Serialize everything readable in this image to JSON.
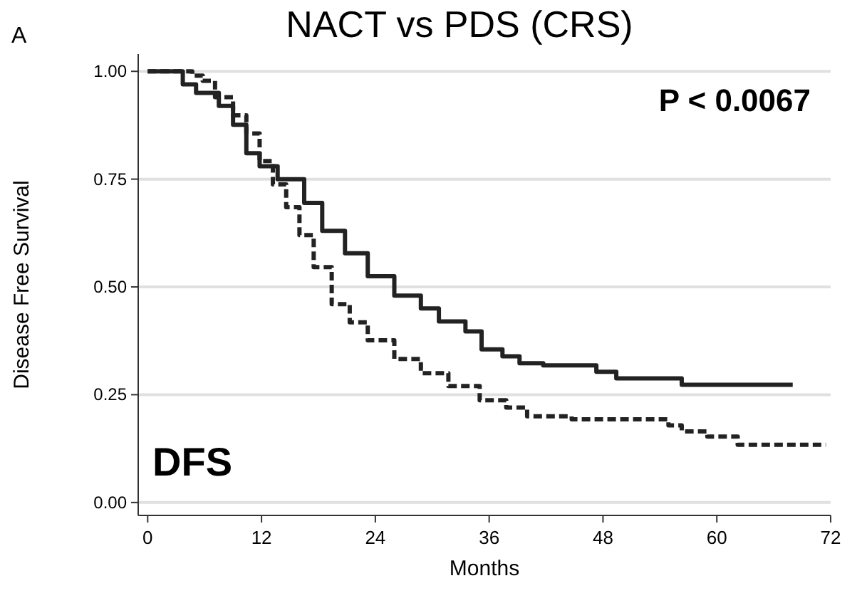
{
  "chart_data": {
    "type": "step",
    "title": "NACT vs PDS (CRS)",
    "xlabel": "Months",
    "ylabel": "Disease Free Survival",
    "annotations": [
      "A",
      "P < 0.0067",
      "DFS"
    ],
    "xlim": [
      -1,
      72
    ],
    "xticks": [
      0,
      12,
      24,
      36,
      48,
      60,
      72
    ],
    "ylim": [
      -0.03,
      1.04
    ],
    "yticks": [
      {
        "value": 0,
        "label": "0.00"
      },
      {
        "value": 0.25,
        "label": "0.25"
      },
      {
        "value": 0.5,
        "label": "0.50"
      },
      {
        "value": 0.75,
        "label": "0.75"
      },
      {
        "value": 1,
        "label": "1.00"
      }
    ],
    "grid": "y",
    "series": [
      {
        "color": "#222222",
        "line_style": "solid",
        "x": [
          0,
          3.7,
          5.1,
          7.5,
          9,
          10.4,
          11.8,
          13.7,
          16.5,
          18.4,
          20.8,
          23.2,
          26,
          28.8,
          30.7,
          33.5,
          35.2,
          37.4,
          39.2,
          41.7,
          47.3,
          49.4,
          56.3,
          68
        ],
        "values": [
          1,
          0.97,
          0.95,
          0.92,
          0.876,
          0.81,
          0.78,
          0.75,
          0.695,
          0.63,
          0.578,
          0.525,
          0.48,
          0.45,
          0.42,
          0.397,
          0.355,
          0.339,
          0.323,
          0.318,
          0.303,
          0.288,
          0.273,
          0.273
        ]
      },
      {
        "color": "#222222",
        "line_style": "dashed",
        "x": [
          0,
          4.7,
          5.8,
          7.1,
          9,
          10.4,
          11.8,
          13.2,
          14.6,
          16,
          17.5,
          19.4,
          21.3,
          23.2,
          26,
          28.8,
          31.7,
          35,
          37.8,
          40,
          44.7,
          54.9,
          56.3,
          59,
          62.2,
          71.5
        ],
        "values": [
          1,
          0.99,
          0.978,
          0.94,
          0.898,
          0.856,
          0.792,
          0.738,
          0.685,
          0.62,
          0.546,
          0.46,
          0.418,
          0.376,
          0.333,
          0.3,
          0.27,
          0.237,
          0.22,
          0.2,
          0.193,
          0.179,
          0.165,
          0.153,
          0.134,
          0.134
        ]
      }
    ]
  }
}
